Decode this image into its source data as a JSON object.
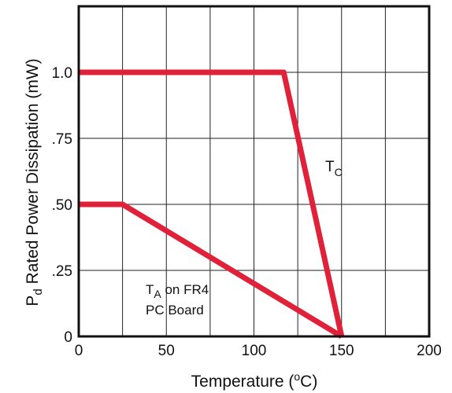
{
  "chart_data": {
    "type": "line",
    "title": "",
    "xlabel": "Temperature (",
    "xlabel_sup": "o",
    "xlabel_end": "C)",
    "ylabel_main": "P",
    "ylabel_sub": "d",
    "ylabel_rest": " Rated Power Dissipation (mW)",
    "xlim": [
      0,
      200
    ],
    "ylim": [
      0,
      1.25
    ],
    "grid": true,
    "x_ticks": [
      {
        "value": 0,
        "label": "0"
      },
      {
        "value": 50,
        "label": "50"
      },
      {
        "value": 100,
        "label": "100"
      },
      {
        "value": 150,
        "label": "150"
      },
      {
        "value": 200,
        "label": "200"
      }
    ],
    "x_gridlines": [
      25,
      50,
      75,
      100,
      125,
      150,
      175
    ],
    "y_ticks": [
      {
        "value": 0,
        "label": "0"
      },
      {
        "value": 0.25,
        "label": ".25"
      },
      {
        "value": 0.5,
        "label": ".50"
      },
      {
        "value": 0.75,
        "label": ".75"
      },
      {
        "value": 1.0,
        "label": "1.0"
      }
    ],
    "y_gridlines": [
      0.25,
      0.5,
      0.75,
      1.0
    ],
    "line_color": "#e0213a",
    "series": [
      {
        "id": "tc",
        "label_main": "T",
        "label_sub": "C",
        "points": [
          [
            0,
            1.0
          ],
          [
            117,
            1.0
          ],
          [
            150,
            0
          ]
        ]
      },
      {
        "id": "ta",
        "label_main": "T",
        "label_sub": "A",
        "label_rest": " on FR4",
        "label_line2": "PC Board",
        "points": [
          [
            0,
            0.5
          ],
          [
            25,
            0.5
          ],
          [
            150,
            0
          ]
        ]
      }
    ]
  }
}
